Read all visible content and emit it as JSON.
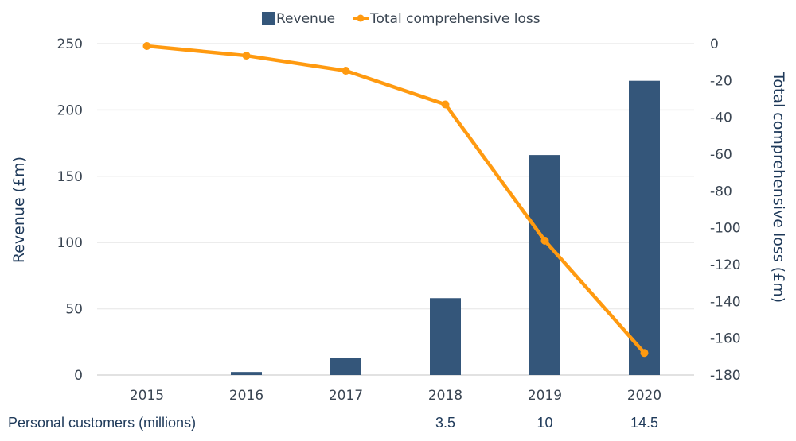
{
  "chart_data": {
    "type": "bar+line",
    "title": "",
    "categories": [
      "2015",
      "2016",
      "2017",
      "2018",
      "2019",
      "2020"
    ],
    "series": [
      {
        "name": "Revenue",
        "type": "bar",
        "axis": "left",
        "color": "#34567a",
        "values": [
          0,
          2.3,
          12.6,
          58,
          166,
          222
        ]
      },
      {
        "name": "Total comprehensive loss",
        "type": "line",
        "axis": "right",
        "color": "#ff9a10",
        "values": [
          -1.3,
          -6.5,
          -14.7,
          -33,
          -107,
          -168
        ]
      }
    ],
    "left_axis": {
      "label": "Revenue (£m)",
      "ylim": [
        0,
        250
      ],
      "ticks": [
        "0",
        "50",
        "100",
        "150",
        "200",
        "250"
      ]
    },
    "right_axis": {
      "label": "Total comprehensive loss (£m)",
      "ylim": [
        -180,
        0
      ],
      "ticks": [
        "0",
        "-20",
        "-40",
        "-60",
        "-80",
        "-100",
        "-120",
        "-140",
        "-160",
        "-180"
      ]
    },
    "grid": true,
    "legend": {
      "position": "top-center",
      "entries": [
        "Revenue",
        "Total comprehensive loss"
      ]
    }
  },
  "customers_row": {
    "label": "Personal customers (millions)",
    "values": [
      "",
      "",
      "",
      "3.5",
      "10",
      "14.5"
    ]
  }
}
